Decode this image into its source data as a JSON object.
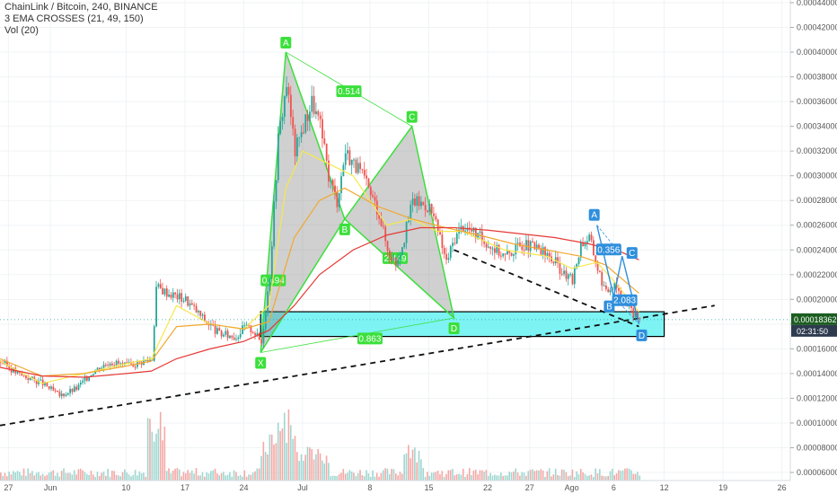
{
  "legend": {
    "title": "ChainLink / Bitcoin, 240, BINANCE",
    "indicator1": "3 EMA CROSSES (21, 49, 150)",
    "indicator2": "Vol (20)"
  },
  "price_tag": {
    "price": "0.00018362",
    "countdown": "02:31:50",
    "value": 0.00018362
  },
  "colors": {
    "up": "#26a69a",
    "down": "#ef5350",
    "ema_fast": "#f6e84a",
    "ema_mid": "#f0a830",
    "ema_slow": "#e53935",
    "pattern_green": "#3be03b",
    "pattern_blue": "#2f8fdd",
    "zone_fill": "#7df3f3",
    "axis_tag": "#1b5e20"
  },
  "chart_data": {
    "type": "candlestick",
    "title": "ChainLink / Bitcoin, 240, BINANCE",
    "y_ticks": [
      "0.00044000",
      "0.00042000",
      "0.00040000",
      "0.00038000",
      "0.00036000",
      "0.00034000",
      "0.00032000",
      "0.00030000",
      "0.00028000",
      "0.00026000",
      "0.00024000",
      "0.00022000",
      "0.00020000",
      "0.00018000",
      "0.00016000",
      "0.00014000",
      "0.00012000",
      "0.00010000",
      "0.00008000",
      "0.00006000"
    ],
    "y_tick_values": [
      0.00044,
      0.00042,
      0.0004,
      0.00038,
      0.00036,
      0.00034,
      0.00032,
      0.0003,
      0.00028,
      0.00026,
      0.00024,
      0.00022,
      0.0002,
      0.00018,
      0.00016,
      0.00014,
      0.00012,
      0.0001,
      8e-05,
      6e-05
    ],
    "x_ticks": [
      "27",
      "Jun",
      "10",
      "17",
      "24",
      "Jul",
      "8",
      "15",
      "22",
      "27",
      "Ago",
      "6",
      "12",
      "19",
      "26"
    ],
    "x_tick_days": [
      -4,
      1,
      10,
      17,
      24,
      31,
      39,
      46,
      53,
      58,
      63,
      68,
      74,
      81,
      88
    ],
    "x_range": [
      -5,
      89
    ],
    "ylim": [
      5e-05,
      0.00045
    ],
    "price_path": [
      [
        -5,
        0.00015
      ],
      [
        -3,
        0.00014
      ],
      [
        0,
        0.000132
      ],
      [
        2,
        0.000122
      ],
      [
        4,
        0.000128
      ],
      [
        6,
        0.000142
      ],
      [
        8,
        0.00015
      ],
      [
        10,
        0.000146
      ],
      [
        12,
        0.00015
      ],
      [
        13,
        0.000152
      ],
      [
        13.5,
        0.00021
      ],
      [
        15,
        0.000205
      ],
      [
        17,
        0.0002
      ],
      [
        19,
        0.000185
      ],
      [
        21,
        0.000172
      ],
      [
        23,
        0.00017
      ],
      [
        24,
        0.000178
      ],
      [
        25,
        0.000175
      ],
      [
        26,
        0.000165
      ],
      [
        27,
        0.00022
      ],
      [
        28,
        0.00033
      ],
      [
        29,
        0.000375
      ],
      [
        30,
        0.00032
      ],
      [
        31,
        0.00034
      ],
      [
        32,
        0.00036
      ],
      [
        33,
        0.00034
      ],
      [
        34,
        0.0003
      ],
      [
        35,
        0.00028
      ],
      [
        36,
        0.00032
      ],
      [
        38,
        0.0003
      ],
      [
        40,
        0.00027
      ],
      [
        41,
        0.00024
      ],
      [
        42,
        0.00023
      ],
      [
        43,
        0.00025
      ],
      [
        44,
        0.00028
      ],
      [
        46,
        0.000275
      ],
      [
        47,
        0.000255
      ],
      [
        48,
        0.00023
      ],
      [
        49,
        0.00025
      ],
      [
        50,
        0.00026
      ],
      [
        52,
        0.00025
      ],
      [
        54,
        0.00024
      ],
      [
        55,
        0.000235
      ],
      [
        57,
        0.000245
      ],
      [
        59,
        0.00024
      ],
      [
        61,
        0.00023
      ],
      [
        62,
        0.00022
      ],
      [
        63,
        0.000215
      ],
      [
        64,
        0.000245
      ],
      [
        65,
        0.00025
      ],
      [
        66,
        0.000225
      ],
      [
        67,
        0.000205
      ],
      [
        68,
        0.000215
      ],
      [
        69,
        0.0002
      ],
      [
        70,
        0.00019
      ],
      [
        71,
        0.000184
      ]
    ],
    "ema_fast": [
      [
        -5,
        0.00015
      ],
      [
        0,
        0.000132
      ],
      [
        5,
        0.00014
      ],
      [
        10,
        0.000148
      ],
      [
        13,
        0.000152
      ],
      [
        16,
        0.000195
      ],
      [
        20,
        0.00018
      ],
      [
        24,
        0.000176
      ],
      [
        27,
        0.000195
      ],
      [
        29,
        0.00029
      ],
      [
        31,
        0.00032
      ],
      [
        34,
        0.00031
      ],
      [
        37,
        0.0003
      ],
      [
        41,
        0.00026
      ],
      [
        44,
        0.000265
      ],
      [
        47,
        0.000255
      ],
      [
        50,
        0.000255
      ],
      [
        55,
        0.00024
      ],
      [
        60,
        0.000235
      ],
      [
        63,
        0.000225
      ],
      [
        66,
        0.00023
      ],
      [
        68,
        0.000215
      ],
      [
        71,
        0.00019
      ]
    ],
    "ema_mid": [
      [
        -5,
        0.000152
      ],
      [
        0,
        0.000138
      ],
      [
        5,
        0.00014
      ],
      [
        10,
        0.000146
      ],
      [
        13,
        0.00015
      ],
      [
        16,
        0.000178
      ],
      [
        20,
        0.00018
      ],
      [
        24,
        0.000176
      ],
      [
        27,
        0.000182
      ],
      [
        30,
        0.00025
      ],
      [
        33,
        0.00028
      ],
      [
        36,
        0.00029
      ],
      [
        40,
        0.000275
      ],
      [
        44,
        0.000265
      ],
      [
        48,
        0.000258
      ],
      [
        52,
        0.000252
      ],
      [
        56,
        0.000245
      ],
      [
        60,
        0.00024
      ],
      [
        64,
        0.000235
      ],
      [
        67,
        0.000228
      ],
      [
        71,
        0.000205
      ]
    ],
    "ema_slow": [
      [
        -5,
        0.000145
      ],
      [
        0,
        0.000138
      ],
      [
        5,
        0.000137
      ],
      [
        10,
        0.00014
      ],
      [
        13,
        0.000142
      ],
      [
        16,
        0.000152
      ],
      [
        20,
        0.00016
      ],
      [
        24,
        0.000166
      ],
      [
        27,
        0.000175
      ],
      [
        30,
        0.000195
      ],
      [
        33,
        0.00022
      ],
      [
        37,
        0.00024
      ],
      [
        41,
        0.000252
      ],
      [
        45,
        0.000258
      ],
      [
        49,
        0.000258
      ],
      [
        53,
        0.000256
      ],
      [
        57,
        0.000253
      ],
      [
        61,
        0.00025
      ],
      [
        65,
        0.000245
      ],
      [
        69,
        0.000238
      ],
      [
        71,
        0.000232
      ]
    ],
    "trendline_support": [
      [
        -5,
        9.8e-05
      ],
      [
        80,
        0.000195
      ]
    ],
    "trendline_resistance": [
      [
        49,
        0.00024
      ],
      [
        71,
        0.000178
      ]
    ],
    "zone": {
      "x_start": 26,
      "x_end": 74,
      "y_top": 0.00019,
      "y_bottom": 0.00017
    },
    "pattern_big": {
      "points": {
        "X": [
          26,
          0.000157
        ],
        "A": [
          29,
          0.0004
        ],
        "B": [
          36,
          0.000265
        ],
        "C": [
          44,
          0.00034
        ],
        "D": [
          49,
          0.000185
        ]
      },
      "ratios": [
        {
          "text": "0.514",
          "at": [
            36.5,
            0.000368
          ]
        },
        {
          "text": "0.494",
          "at": [
            27.5,
            0.000215
          ]
        },
        {
          "text": "2.449",
          "at": [
            42,
            0.000233
          ]
        },
        {
          "text": "0.863",
          "at": [
            39,
            0.000168
          ]
        }
      ]
    },
    "pattern_small": {
      "points": {
        "X": [
          66,
          0.00026
        ],
        "A": [
          66,
          0.00026
        ],
        "B": [
          68,
          0.000202
        ],
        "C": [
          69,
          0.000235
        ],
        "D": [
          71,
          0.00018
        ]
      },
      "ratios": [
        {
          "text": "0.356",
          "at": [
            67.4,
            0.00024
          ]
        },
        {
          "text": "2.083",
          "at": [
            69.3,
            0.000199
          ]
        }
      ]
    },
    "volume": [
      [
        13.5,
        40
      ],
      [
        27,
        25
      ],
      [
        28,
        30
      ],
      [
        29,
        40
      ],
      [
        31,
        20
      ],
      [
        33,
        18
      ],
      [
        44,
        20
      ]
    ],
    "current_price": 0.00018362
  }
}
